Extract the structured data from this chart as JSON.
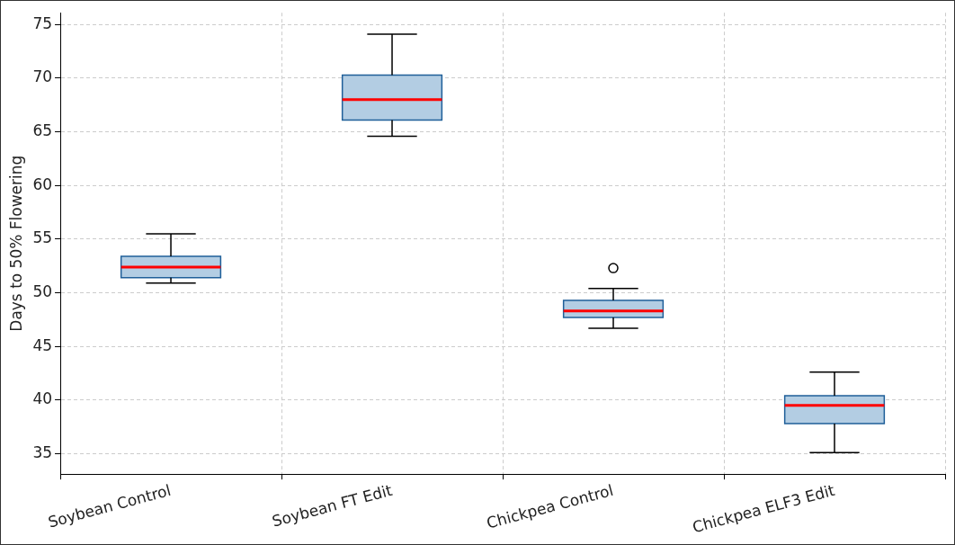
{
  "chart_data": {
    "type": "box",
    "ylabel": "Days to 50% Flowering",
    "categories": [
      "Soybean Control",
      "Soybean FT Edit",
      "Chickpea Control",
      "Chickpea ELF3 Edit"
    ],
    "boxes": [
      {
        "low": 50.9,
        "q1": 51.4,
        "median": 52.4,
        "q3": 53.4,
        "high": 55.5
      },
      {
        "low": 64.6,
        "q1": 66.1,
        "median": 68.0,
        "q3": 70.3,
        "high": 74.1
      },
      {
        "low": 46.7,
        "q1": 47.7,
        "median": 48.3,
        "q3": 49.3,
        "high": 50.4,
        "outliers": [
          52.3
        ]
      },
      {
        "low": 35.1,
        "q1": 37.8,
        "median": 39.5,
        "q3": 40.4,
        "high": 42.6
      }
    ],
    "color": "#b3cde3",
    "ylim": [
      33.1,
      76.1
    ],
    "yticks": [
      35,
      40,
      45,
      50,
      55,
      60,
      65,
      70,
      75
    ],
    "grid": true
  }
}
